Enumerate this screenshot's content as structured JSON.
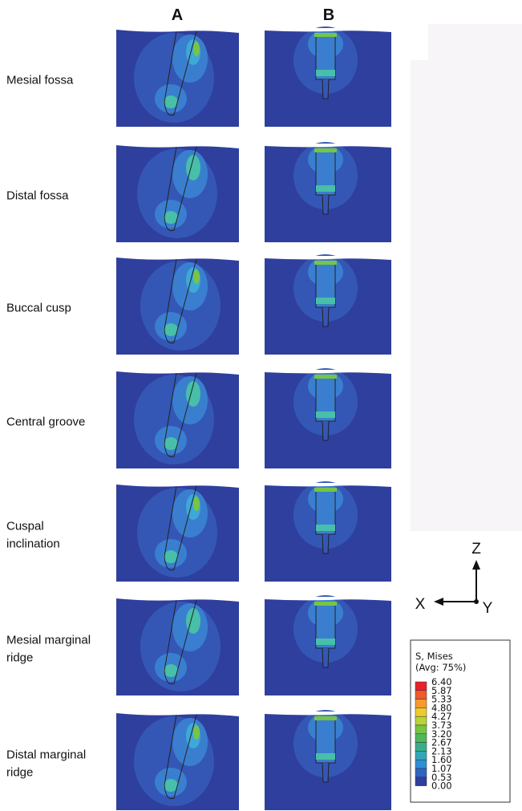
{
  "columns": [
    "A",
    "B"
  ],
  "rows": [
    [
      "Mesial fossa"
    ],
    [
      "Distal fossa"
    ],
    [
      "Buccal cusp"
    ],
    [
      "Central groove"
    ],
    [
      "Cuspal",
      "inclination"
    ],
    [
      "Mesial marginal",
      "ridge"
    ],
    [
      "Distal marginal",
      "ridge"
    ]
  ],
  "axes": {
    "z": "Z",
    "x": "X",
    "y": "Y"
  },
  "legend": {
    "title": "S, Mises",
    "subtitle": "(Avg: 75%)",
    "levels": [
      "6.40",
      "5.87",
      "5.33",
      "4.80",
      "4.27",
      "3.73",
      "3.20",
      "2.67",
      "2.13",
      "1.60",
      "1.07",
      "0.53",
      "0.00"
    ],
    "colors": [
      "#e8202a",
      "#ee5a2a",
      "#f39a30",
      "#eecb2c",
      "#b8d43a",
      "#78c445",
      "#4fb85a",
      "#3aae8a",
      "#34a6b8",
      "#2f8fd6",
      "#2f64c4",
      "#2f3f9e"
    ]
  }
}
